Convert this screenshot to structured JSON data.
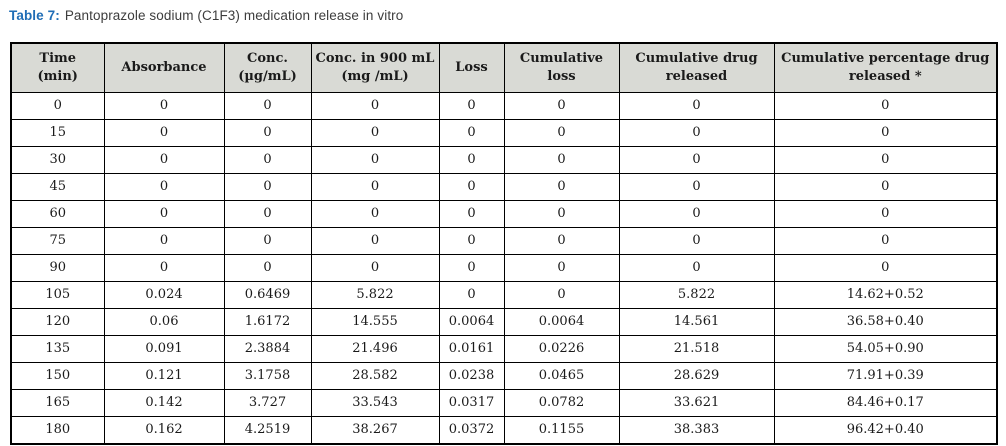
{
  "caption": {
    "label": "Table 7:",
    "text": "Pantoprazole sodium (C1F3) medication release in vitro"
  },
  "colors": {
    "caption_label_blue": "#1f6db6",
    "header_background": "#d9dad5",
    "grid_border": "#000000",
    "text": "#1a1a1a"
  },
  "table": {
    "columns": [
      "Time\n(min)",
      "Absorbance",
      "Conc.\n(µg/mL)",
      "Conc. in 900 mL\n(mg /mL)",
      "Loss",
      "Cumulative\nloss",
      "Cumulative drug\nreleased",
      "Cumulative percentage drug\nreleased *"
    ],
    "rows": [
      [
        "0",
        "0",
        "0",
        "0",
        "0",
        "0",
        "0",
        "0"
      ],
      [
        "15",
        "0",
        "0",
        "0",
        "0",
        "0",
        "0",
        "0"
      ],
      [
        "30",
        "0",
        "0",
        "0",
        "0",
        "0",
        "0",
        "0"
      ],
      [
        "45",
        "0",
        "0",
        "0",
        "0",
        "0",
        "0",
        "0"
      ],
      [
        "60",
        "0",
        "0",
        "0",
        "0",
        "0",
        "0",
        "0"
      ],
      [
        "75",
        "0",
        "0",
        "0",
        "0",
        "0",
        "0",
        "0"
      ],
      [
        "90",
        "0",
        "0",
        "0",
        "0",
        "0",
        "0",
        "0"
      ],
      [
        "105",
        "0.024",
        "0.6469",
        "5.822",
        "0",
        "0",
        "5.822",
        "14.62+0.52"
      ],
      [
        "120",
        "0.06",
        "1.6172",
        "14.555",
        "0.0064",
        "0.0064",
        "14.561",
        "36.58+0.40"
      ],
      [
        "135",
        "0.091",
        "2.3884",
        "21.496",
        "0.0161",
        "0.0226",
        "21.518",
        "54.05+0.90"
      ],
      [
        "150",
        "0.121",
        "3.1758",
        "28.582",
        "0.0238",
        "0.0465",
        "28.629",
        "71.91+0.39"
      ],
      [
        "165",
        "0.142",
        "3.727",
        "33.543",
        "0.0317",
        "0.0782",
        "33.621",
        "84.46+0.17"
      ],
      [
        "180",
        "0.162",
        "4.2519",
        "38.267",
        "0.0372",
        "0.1155",
        "38.383",
        "96.42+0.40"
      ]
    ]
  }
}
